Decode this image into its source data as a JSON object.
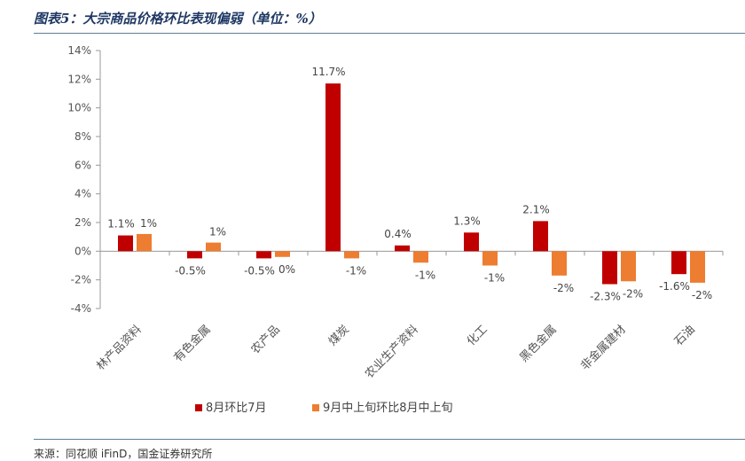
{
  "title": "图表5：大宗商品价格环比表现偏弱（单位：%）",
  "source": "来源：同花顺 iFinD，国金证券研究所",
  "colors": {
    "series1": "#c00000",
    "series2": "#ed7d31",
    "axis": "#999999",
    "accent": "#1f3864"
  },
  "chart_data": {
    "type": "bar",
    "title": "图表5：大宗商品价格环比表现偏弱（单位：%）",
    "xlabel": "",
    "ylabel": "",
    "ylim": [
      -4,
      14
    ],
    "yticks": [
      14,
      12,
      10,
      8,
      6,
      4,
      2,
      0,
      -2,
      -4
    ],
    "ytick_labels": [
      "14%",
      "12%",
      "10%",
      "8%",
      "6%",
      "4%",
      "2%",
      "0%",
      "-2%",
      "-4%"
    ],
    "grid": false,
    "legend_position": "bottom",
    "categories": [
      "林产品资料",
      "有色金属",
      "农产品",
      "煤炭",
      "农业生产资料",
      "化工",
      "黑色金属",
      "非金属建材",
      "石油"
    ],
    "series": [
      {
        "name": "8月环比7月",
        "color": "#c00000",
        "values": [
          1.1,
          -0.5,
          -0.5,
          11.7,
          0.4,
          1.3,
          2.1,
          -2.3,
          -1.6
        ],
        "labels": [
          "1.1%",
          "-0.5%",
          "-0.5%",
          "11.7%",
          "0.4%",
          "1.3%",
          "2.1%",
          "-2.3%",
          "-1.6%"
        ]
      },
      {
        "name": "9月中上旬环比8月中上旬",
        "color": "#ed7d31",
        "values": [
          1.2,
          0.6,
          -0.4,
          -0.5,
          -0.8,
          -1.0,
          -1.7,
          -2.1,
          -2.2
        ],
        "labels": [
          "1%",
          "1%",
          "0%",
          "-1%",
          "-1%",
          "-1%",
          "-2%",
          "-2%",
          "-2%"
        ]
      }
    ]
  }
}
